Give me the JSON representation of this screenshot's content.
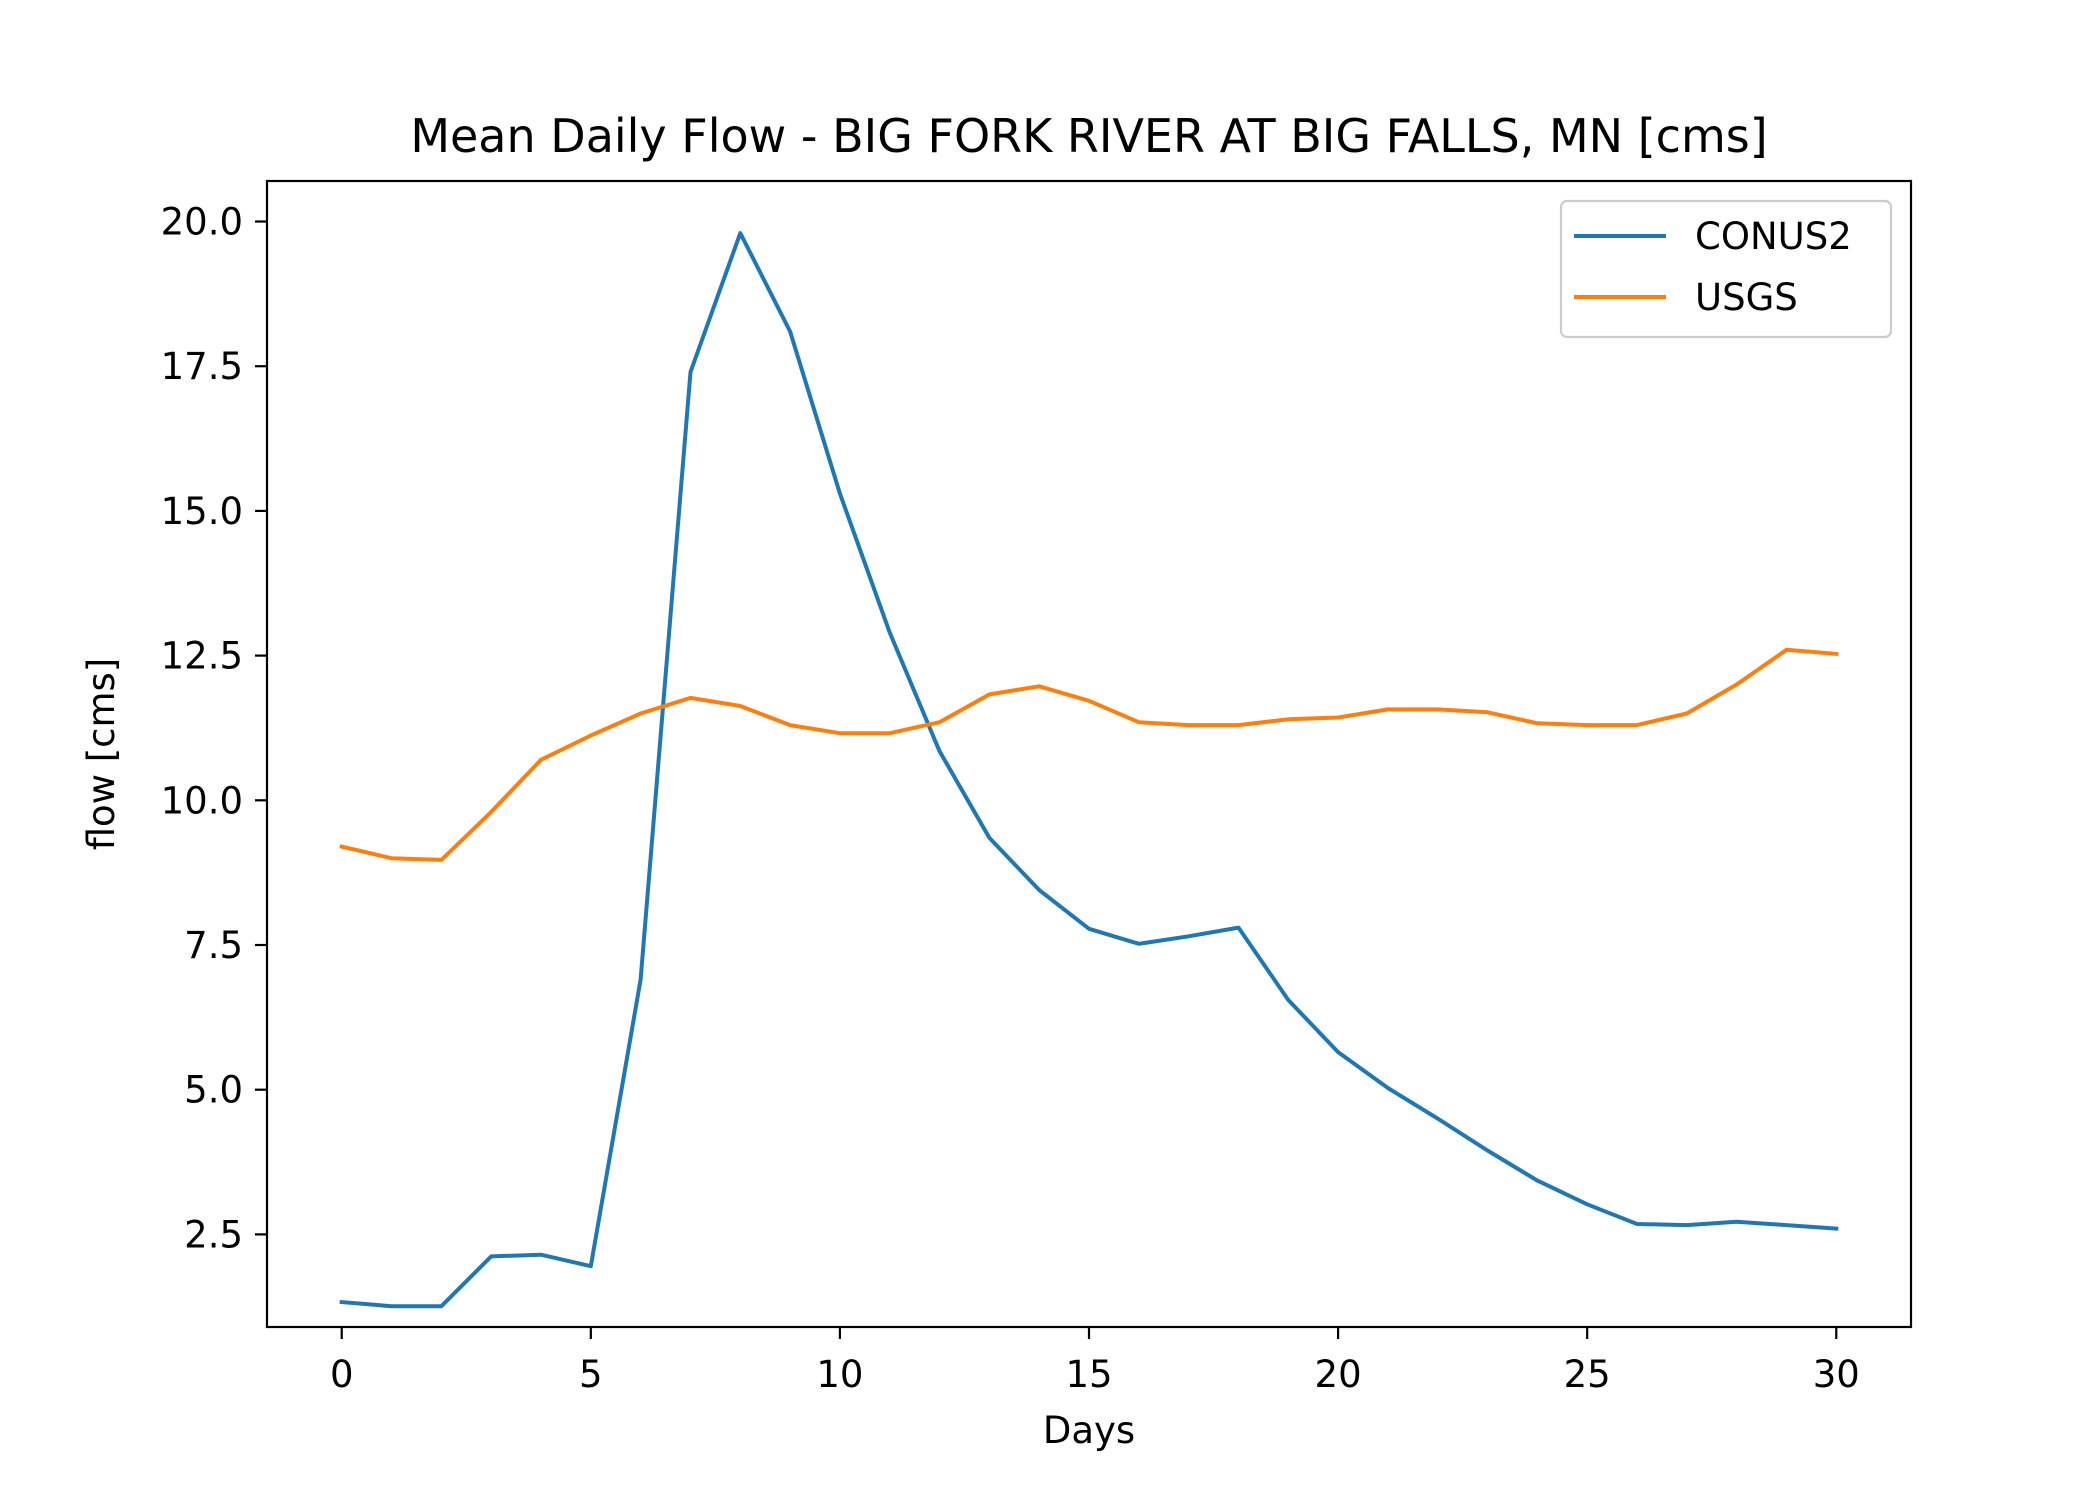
{
  "chart_data": {
    "type": "line",
    "title": "Mean Daily Flow - BIG FORK RIVER AT BIG FALLS, MN [cms]",
    "xlabel": "Days",
    "ylabel": "flow [cms]",
    "xlim": [
      -1.5,
      31.5
    ],
    "ylim": [
      0.9,
      20.7
    ],
    "xticks": [
      0,
      5,
      10,
      15,
      20,
      25,
      30
    ],
    "xtick_labels": [
      "0",
      "5",
      "10",
      "15",
      "20",
      "25",
      "30"
    ],
    "yticks": [
      2.5,
      5.0,
      7.5,
      10.0,
      12.5,
      15.0,
      17.5,
      20.0
    ],
    "ytick_labels": [
      "2.5",
      "5.0",
      "7.5",
      "10.0",
      "12.5",
      "15.0",
      "17.5",
      "20.0"
    ],
    "grid": false,
    "legend_position": "top-right",
    "x": [
      0,
      1,
      2,
      3,
      4,
      5,
      6,
      7,
      8,
      9,
      10,
      11,
      12,
      13,
      14,
      15,
      16,
      17,
      18,
      19,
      20,
      21,
      22,
      23,
      24,
      25,
      26,
      27,
      28,
      29,
      30
    ],
    "series": [
      {
        "name": "CONUS2",
        "color": "#1f77b4",
        "values": [
          1.33,
          1.26,
          1.26,
          2.12,
          2.15,
          1.95,
          6.9,
          17.4,
          19.8,
          18.1,
          15.3,
          12.9,
          10.85,
          9.35,
          8.45,
          7.78,
          7.52,
          7.65,
          7.8,
          6.55,
          5.65,
          5.03,
          4.5,
          3.95,
          3.43,
          3.02,
          2.68,
          2.66,
          2.72,
          2.66,
          2.6
        ]
      },
      {
        "name": "USGS",
        "color": "#ff7f0e",
        "values": [
          9.2,
          9.0,
          8.97,
          9.8,
          10.7,
          11.12,
          11.5,
          11.77,
          11.63,
          11.3,
          11.16,
          11.16,
          11.35,
          11.83,
          11.97,
          11.72,
          11.35,
          11.3,
          11.3,
          11.4,
          11.43,
          11.57,
          11.57,
          11.52,
          11.33,
          11.3,
          11.3,
          11.5,
          12.0,
          12.6,
          12.53
        ]
      }
    ]
  }
}
